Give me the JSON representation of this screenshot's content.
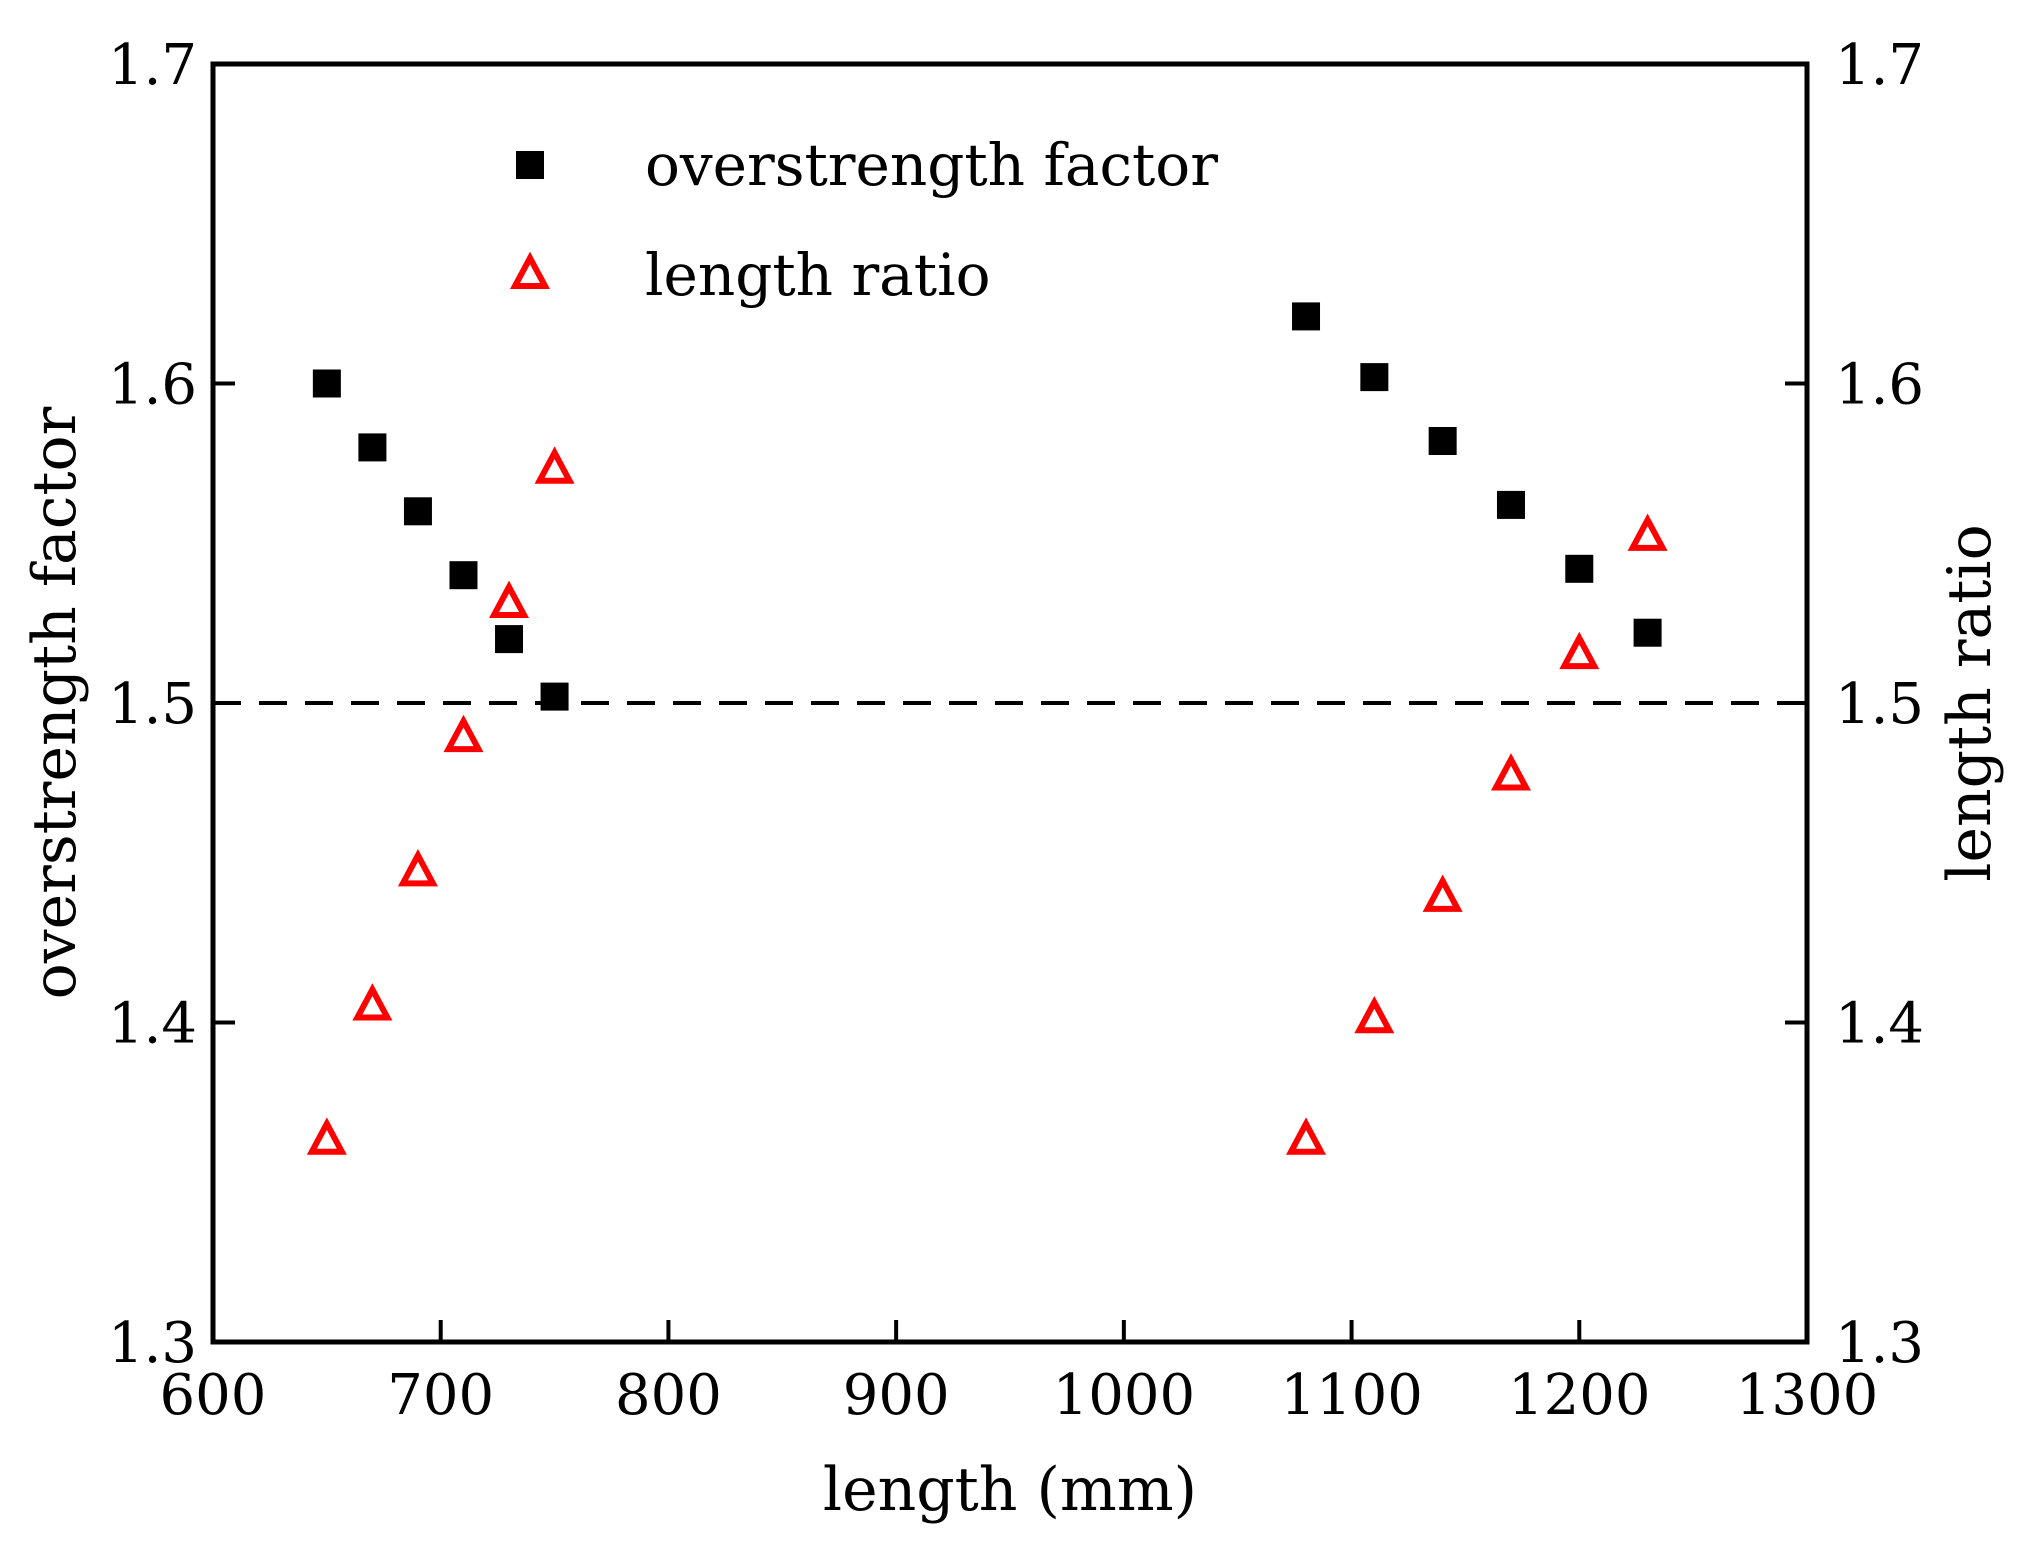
{
  "chart_data": {
    "type": "scatter",
    "xlabel": "length (mm)",
    "ylabel": "overstrength factor",
    "y2label": "length ratio",
    "xlim": [
      600,
      1300
    ],
    "ylim": [
      1.3,
      1.7
    ],
    "y2lim": [
      1.3,
      1.7
    ],
    "xticks": [
      "600",
      "700",
      "800",
      "900",
      "1000",
      "1100",
      "1200",
      "1300"
    ],
    "yticks": [
      "1.3",
      "1.4",
      "1.5",
      "1.6",
      "1.7"
    ],
    "y2ticks": [
      "1.3",
      "1.4",
      "1.5",
      "1.6",
      "1.7"
    ],
    "grid": false,
    "legend_position": "top-center",
    "reference_line": {
      "y": 1.5,
      "style": "dashed",
      "color": "#000000"
    },
    "series": [
      {
        "name": "overstrength factor",
        "marker": "filled-square",
        "color": "#000000",
        "axis": "left",
        "x": [
          650,
          670,
          690,
          710,
          730,
          750,
          1080,
          1110,
          1140,
          1170,
          1200,
          1230
        ],
        "y": [
          1.6,
          1.58,
          1.56,
          1.54,
          1.52,
          1.502,
          1.621,
          1.602,
          1.582,
          1.562,
          1.542,
          1.522
        ]
      },
      {
        "name": "length ratio",
        "marker": "open-triangle",
        "color": "#ff0000",
        "axis": "right",
        "x": [
          650,
          670,
          690,
          710,
          730,
          750,
          1080,
          1110,
          1140,
          1170,
          1200,
          1230
        ],
        "y": [
          1.363,
          1.405,
          1.447,
          1.489,
          1.531,
          1.573,
          1.363,
          1.401,
          1.439,
          1.477,
          1.515,
          1.552
        ]
      }
    ]
  }
}
